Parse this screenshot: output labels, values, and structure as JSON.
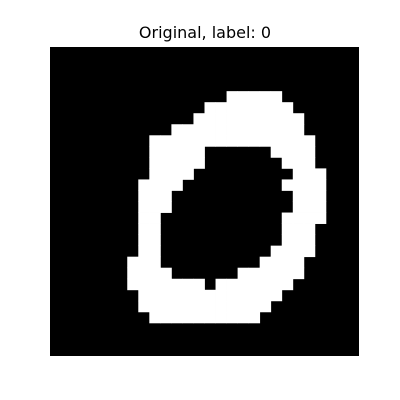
{
  "figure": {
    "title": "Original, label: 0",
    "digit_label": 0,
    "colors": {
      "background": "#000000",
      "foreground": "#ffffff"
    },
    "grid_size": 28,
    "pixels": [
      "0000000000000000000000000000",
      "0000000000000000000000000000",
      "0000000000000000000000000000",
      "0000000000000000000000000000",
      "0000000000000000111110000000",
      "0000000000000011111111000000",
      "0000000000000111111111100000",
      "0000000000011111111111100000",
      "0000000007111111111111110000",
      "0000000001111100000011110000",
      "0000000001111100000001110000",
      "0000000001111000000000111000",
      "0000000011110000000001111000",
      "0000000011100000000000111000",
      "0000000011100000000000111000",
      "0000000011000000000001111000",
      "0000000011000000000001110000",
      "0000000011000000000001110000",
      "0000000011000000000011110000",
      "0000000111000000000111100000",
      "0000000111100000011111100000",
      "0000000111111101111111000000",
      "0000000011111111111110000000",
      "0000000011111111111100000000",
      "0000000001111111111000000000",
      "0000000000000000000000000000",
      "0000000000000000000000000000",
      "0000000000000000000000000000"
    ]
  }
}
